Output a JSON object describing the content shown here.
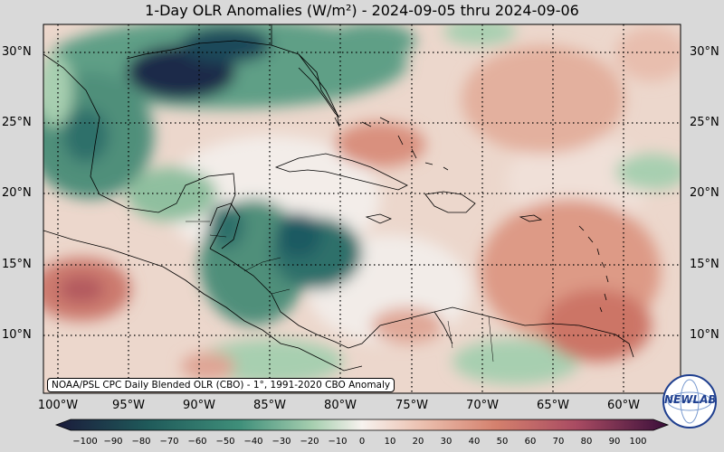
{
  "title": "1-Day OLR Anomalies (W/m²) - 2024-09-05 thru 2024-09-06",
  "source_note": "NOAA/PSL CPC Daily Blended OLR (CBO) - 1°, 1991-2020 CBO Anomaly",
  "logo_text": "NEWLAB",
  "map": {
    "lat_labels": [
      "30°N",
      "25°N",
      "20°N",
      "15°N",
      "10°N"
    ],
    "lon_labels": [
      "100°W",
      "95°W",
      "90°W",
      "85°W",
      "80°W",
      "75°W",
      "70°W",
      "65°W",
      "60°W"
    ]
  },
  "colorbar": {
    "ticks": [
      "−100",
      "−90",
      "−80",
      "−70",
      "−60",
      "−50",
      "−40",
      "−30",
      "−20",
      "−10",
      "0",
      "10",
      "20",
      "30",
      "40",
      "50",
      "60",
      "70",
      "80",
      "90",
      "100"
    ],
    "colors": {
      "neg_strong": "#1a1a3a",
      "neg_mid": "#1f6f6a",
      "neg_light": "#8fbf9f",
      "zero": "#f7f2ee",
      "pos_light": "#e8b5a3",
      "pos_mid": "#c86a5c",
      "pos_strong": "#5a1a3a"
    }
  }
}
